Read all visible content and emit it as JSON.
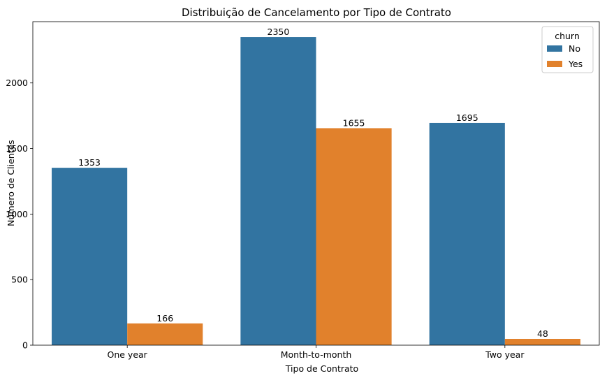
{
  "chart_data": {
    "type": "bar",
    "title": "Distribuição de Cancelamento por Tipo de Contrato",
    "xlabel": "Tipo de Contrato",
    "ylabel": "Número de Clientes",
    "categories": [
      "One year",
      "Month-to-month",
      "Two year"
    ],
    "series": [
      {
        "name": "No",
        "values": [
          1353,
          2350,
          1695
        ],
        "color": "#3274a1"
      },
      {
        "name": "Yes",
        "values": [
          166,
          1655,
          48
        ],
        "color": "#e1812c"
      }
    ],
    "yticks": [
      0,
      500,
      1000,
      1500,
      2000
    ],
    "ylim": [
      0,
      2467.5
    ],
    "grid": false,
    "legend": {
      "title": "churn",
      "position": "top-right"
    }
  }
}
